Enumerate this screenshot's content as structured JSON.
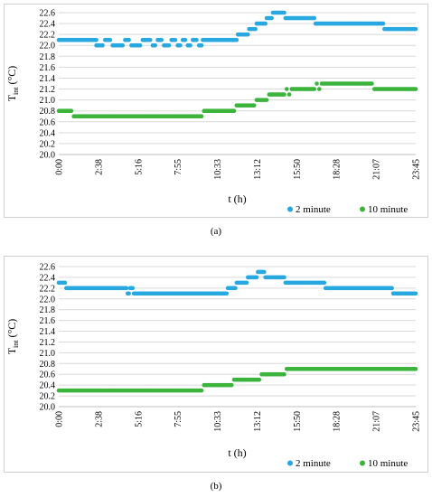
{
  "chart_data": [
    {
      "type": "scatter",
      "panel_label": "(a)",
      "xlabel": "t (h)",
      "ylabel": "T",
      "ylabel_sub": "int",
      "ylabel_unit": " (°C)",
      "x_ticks": [
        "0:00",
        "2:38",
        "5:16",
        "7:55",
        "10:33",
        "13:12",
        "15:50",
        "18:28",
        "21:07",
        "23:45"
      ],
      "x_range_minutes": [
        0,
        1425
      ],
      "y_ticks": [
        "20.0",
        "20.2",
        "20.4",
        "20.6",
        "20.8",
        "21.0",
        "21.2",
        "21.4",
        "21.6",
        "21.8",
        "22.0",
        "22.2",
        "22.4",
        "22.6"
      ],
      "ylim": [
        20.0,
        22.6
      ],
      "grid": true,
      "legend_position": "bottom-right",
      "series": [
        {
          "name": "2 minute",
          "color": "#29a8e0",
          "segments": [
            {
              "from": 0,
              "to": 150,
              "value": 22.1
            },
            {
              "from": 150,
              "to": 175,
              "value": 22.0
            },
            {
              "from": 185,
              "to": 205,
              "value": 22.1
            },
            {
              "from": 215,
              "to": 255,
              "value": 22.0
            },
            {
              "from": 265,
              "to": 280,
              "value": 22.1
            },
            {
              "from": 290,
              "to": 325,
              "value": 22.0
            },
            {
              "from": 335,
              "to": 365,
              "value": 22.1
            },
            {
              "from": 375,
              "to": 385,
              "value": 22.0
            },
            {
              "from": 395,
              "to": 410,
              "value": 22.1
            },
            {
              "from": 420,
              "to": 440,
              "value": 22.0
            },
            {
              "from": 450,
              "to": 465,
              "value": 22.1
            },
            {
              "from": 475,
              "to": 485,
              "value": 22.0
            },
            {
              "from": 495,
              "to": 505,
              "value": 22.1
            },
            {
              "from": 515,
              "to": 525,
              "value": 22.0
            },
            {
              "from": 535,
              "to": 550,
              "value": 22.1
            },
            {
              "from": 560,
              "to": 570,
              "value": 22.0
            },
            {
              "from": 575,
              "to": 710,
              "value": 22.1
            },
            {
              "from": 715,
              "to": 755,
              "value": 22.2
            },
            {
              "from": 760,
              "to": 785,
              "value": 22.3
            },
            {
              "from": 790,
              "to": 825,
              "value": 22.4
            },
            {
              "from": 830,
              "to": 850,
              "value": 22.5
            },
            {
              "from": 855,
              "to": 900,
              "value": 22.6
            },
            {
              "from": 905,
              "to": 1020,
              "value": 22.5
            },
            {
              "from": 1025,
              "to": 1295,
              "value": 22.4
            },
            {
              "from": 1300,
              "to": 1425,
              "value": 22.3
            }
          ]
        },
        {
          "name": "10 minute",
          "color": "#3cb43c",
          "segments": [
            {
              "from": 0,
              "to": 50,
              "value": 20.8
            },
            {
              "from": 60,
              "to": 570,
              "value": 20.7
            },
            {
              "from": 580,
              "to": 700,
              "value": 20.8
            },
            {
              "from": 710,
              "to": 780,
              "value": 20.9
            },
            {
              "from": 790,
              "to": 830,
              "value": 21.0
            },
            {
              "from": 840,
              "to": 900,
              "value": 21.1
            },
            {
              "from": 910,
              "to": 910,
              "value": 21.2
            },
            {
              "from": 920,
              "to": 920,
              "value": 21.1
            },
            {
              "from": 930,
              "to": 1020,
              "value": 21.2
            },
            {
              "from": 1030,
              "to": 1030,
              "value": 21.3
            },
            {
              "from": 1040,
              "to": 1040,
              "value": 21.2
            },
            {
              "from": 1050,
              "to": 1250,
              "value": 21.3
            },
            {
              "from": 1260,
              "to": 1425,
              "value": 21.2
            }
          ]
        }
      ]
    },
    {
      "type": "scatter",
      "panel_label": "(b)",
      "xlabel": "t (h)",
      "ylabel": "T",
      "ylabel_sub": "int",
      "ylabel_unit": " (°C)",
      "x_ticks": [
        "0:00",
        "2:38",
        "5:16",
        "7:55",
        "10:33",
        "13:12",
        "15:50",
        "18:28",
        "21:07",
        "23:45"
      ],
      "x_range_minutes": [
        0,
        1425
      ],
      "y_ticks": [
        "20.0",
        "20.2",
        "20.4",
        "20.6",
        "20.8",
        "21.0",
        "21.2",
        "21.4",
        "21.6",
        "21.8",
        "22.0",
        "22.2",
        "22.4",
        "22.6"
      ],
      "ylim": [
        20.0,
        22.6
      ],
      "grid": true,
      "legend_position": "bottom-right",
      "series": [
        {
          "name": "2 minute",
          "color": "#29a8e0",
          "segments": [
            {
              "from": 0,
              "to": 25,
              "value": 22.3
            },
            {
              "from": 30,
              "to": 270,
              "value": 22.2
            },
            {
              "from": 275,
              "to": 280,
              "value": 22.1
            },
            {
              "from": 285,
              "to": 295,
              "value": 22.2
            },
            {
              "from": 300,
              "to": 670,
              "value": 22.1
            },
            {
              "from": 675,
              "to": 705,
              "value": 22.2
            },
            {
              "from": 710,
              "to": 750,
              "value": 22.3
            },
            {
              "from": 755,
              "to": 790,
              "value": 22.4
            },
            {
              "from": 795,
              "to": 820,
              "value": 22.5
            },
            {
              "from": 825,
              "to": 900,
              "value": 22.4
            },
            {
              "from": 905,
              "to": 1060,
              "value": 22.3
            },
            {
              "from": 1065,
              "to": 1330,
              "value": 22.2
            },
            {
              "from": 1335,
              "to": 1425,
              "value": 22.1
            }
          ]
        },
        {
          "name": "10 minute",
          "color": "#3cb43c",
          "segments": [
            {
              "from": 0,
              "to": 570,
              "value": 20.3
            },
            {
              "from": 580,
              "to": 690,
              "value": 20.4
            },
            {
              "from": 700,
              "to": 800,
              "value": 20.5
            },
            {
              "from": 810,
              "to": 900,
              "value": 20.6
            },
            {
              "from": 910,
              "to": 1425,
              "value": 20.7
            }
          ]
        }
      ]
    }
  ]
}
